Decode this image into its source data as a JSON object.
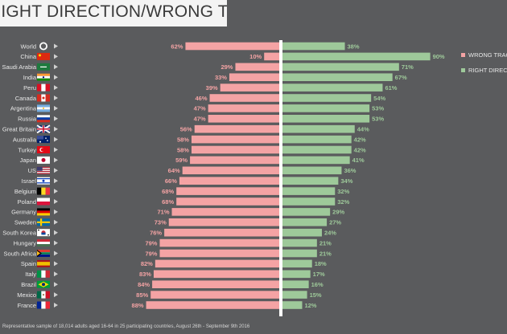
{
  "header": {
    "title": "RIGHT DIRECTION/WRONG TRACK"
  },
  "footnote": "Representative sample of 18,014 adults aged 16-64 in 25 participating countries, August 26th - September 9th 2016",
  "colors": {
    "wrong": "#f4a3a4",
    "right": "#9ec99a",
    "background": "#5a5b5d",
    "label": "#e8e8e8"
  },
  "chart_data": {
    "type": "bar",
    "title": "RIGHT DIRECTION/WRONG TRACK",
    "categories": [
      "World",
      "China",
      "Saudi Arabia",
      "India",
      "Peru",
      "Canada",
      "Argentina",
      "Russia",
      "Great Britain",
      "Australia",
      "Turkey",
      "Japan",
      "US",
      "Israel",
      "Belgium",
      "Poland",
      "Germany",
      "Sweden",
      "South Korea",
      "Hungary",
      "South Africa",
      "Spain",
      "Italy",
      "Brazil",
      "Mexico",
      "France"
    ],
    "flags": [
      "globe",
      "cn",
      "sa",
      "in",
      "pe",
      "ca",
      "ar",
      "ru",
      "gb",
      "au",
      "tr",
      "jp",
      "us",
      "il",
      "be",
      "pl",
      "de",
      "se",
      "kr",
      "hu",
      "za",
      "es",
      "it",
      "br",
      "mx",
      "fr"
    ],
    "series": [
      {
        "name": "WRONG TRACK",
        "values": [
          62,
          10,
          29,
          33,
          39,
          46,
          47,
          47,
          56,
          58,
          58,
          59,
          64,
          66,
          68,
          68,
          71,
          73,
          76,
          79,
          79,
          82,
          83,
          84,
          85,
          88
        ]
      },
      {
        "name": "RIGHT DIRECTION",
        "values": [
          38,
          90,
          71,
          67,
          61,
          54,
          53,
          53,
          44,
          42,
          42,
          41,
          36,
          34,
          32,
          32,
          29,
          27,
          24,
          21,
          21,
          18,
          17,
          16,
          15,
          12
        ]
      }
    ],
    "legend": {
      "position": "right",
      "labels": [
        "WRONG TRACK",
        "RIGHT DIRECTION"
      ]
    },
    "value_suffix": "%",
    "xlabel": "",
    "ylabel": "",
    "xlim": [
      0,
      100
    ]
  }
}
